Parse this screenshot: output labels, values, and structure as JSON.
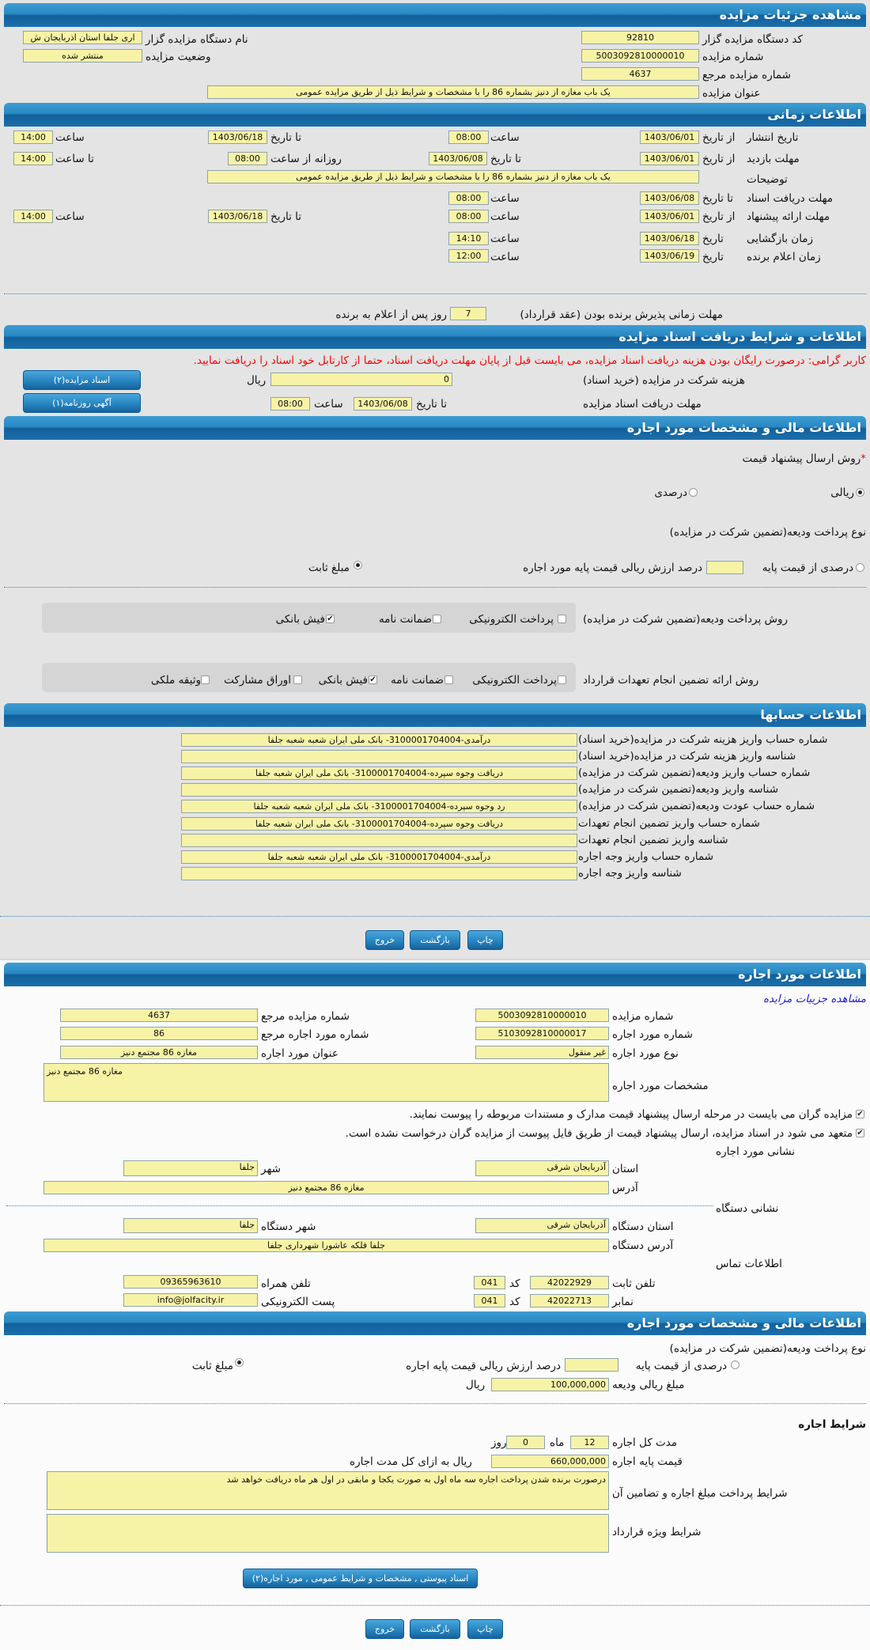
{
  "s1": {
    "title": "مشاهده جزئیات مزایده",
    "code_label": "کد دستگاه مزایده گزار",
    "code": "92810",
    "number_label": "شماره مزایده",
    "number": "5003092810000010",
    "ref_label": "شماره مزایده مرجع",
    "ref": "4637",
    "subject_label": "عنوان مزایده",
    "subject": "یک باب مغازه از دنیز بشماره 86 را با مشخصات  و شرایط ذیل  از طریق مزایده عمومی",
    "org_label": "نام دستگاه مزایده گزار",
    "org": "اری جلفا استان اذربایجان ش",
    "status_label": "وضعیت مزایده",
    "status": "منتشر شده"
  },
  "s2": {
    "title": "اطلاعات زمانی",
    "from_date": "از تاریخ",
    "to_date": "تا تاریخ",
    "date": "تاریخ",
    "time": "ساعت",
    "daily_from": "روزانه از ساعت",
    "to_time": "تا ساعت",
    "publish_label": "تاریخ انتشار",
    "publish_from": "1403/06/01",
    "publish_from_time": "08:00",
    "publish_to": "1403/06/18",
    "publish_to_time": "14:00",
    "visit_label": "مهلت بازدید",
    "visit_from": "1403/06/01",
    "visit_to": "1403/06/08",
    "visit_daily_from": "08:00",
    "visit_daily_to": "14:00",
    "desc_label": "توضیحات",
    "desc": "یک باب مغازه از دنیز بشماره 86 را با مشخصات  و شرایط ذیل  از طریق مزایده عمومی",
    "docs_label": "مهلت دریافت اسناد",
    "docs_to": "1403/06/08",
    "docs_time": "08:00",
    "offer_label": "مهلت ارائه پیشنهاد",
    "offer_from": "1403/06/01",
    "offer_from_time": "08:00",
    "offer_to": "1403/06/18",
    "offer_to_time": "14:00",
    "open_label": "زمان بازگشایی",
    "open_date": "1403/06/18",
    "open_time": "14:10",
    "winner_label": "زمان اعلام برنده",
    "winner_date": "1403/06/19",
    "winner_time": "12:00",
    "accept_label": "مهلت زمانی پذیرش برنده بودن (عقد قرارداد)",
    "accept_days": "7",
    "accept_suffix": "روز پس از اعلام به برنده"
  },
  "s3": {
    "title": "اطلاعات و شرایط دریافت اسناد مزایده",
    "warning": "کاربر گرامی: درصورت رایگان بودن هزینه دریافت اسناد مزایده، می بایست قبل از پایان مهلت دریافت اسناد، حتما از کارتابل خود اسناد را دریافت نمایید.",
    "fee_label": "هزینه شرکت در مزایده (خرید اسناد)",
    "fee": "0",
    "rial": "ریال",
    "deadline_label": "مهلت دریافت اسناد مزایده",
    "to_date": "تا تاریخ",
    "deadline_date": "1403/06/08",
    "time": "ساعت",
    "deadline_time": "08:00",
    "docs_button": "اسناد مزایده(۲)",
    "ad_button": "آگهی روزنامه(۱)"
  },
  "s4": {
    "title": "اطلاعات مالی و مشخصات مورد اجاره",
    "required_mark": "*",
    "method_label": "روش ارسال پیشنهاد قیمت",
    "rial_option": "ریالی",
    "percent_option": "درصدی",
    "deposit_type_label": "نوع پرداخت ودیعه(تضمین شرکت در مزایده)",
    "pct_option": "درصدی از قیمت پایه",
    "pct_value": "",
    "pct_suffix": "درصد ارزش ریالی قیمت پایه مورد اجاره",
    "fixed_option": "مبلغ ثابت",
    "pay_method_label": "روش پرداخت ودیعه(تضمین شرکت در مزایده)",
    "pay_methods": [
      {
        "label": "پرداخت الکترونیکی",
        "checked": false
      },
      {
        "label": "ضمانت نامه",
        "checked": false
      },
      {
        "label": "فیش بانکی",
        "checked": true
      }
    ],
    "guarantee_label": "روش ارائه تضمین انجام تعهدات قرارداد",
    "guarantees": [
      {
        "label": "پرداخت الکترونیکی",
        "checked": false
      },
      {
        "label": "ضمانت نامه",
        "checked": false
      },
      {
        "label": "فیش بانکی",
        "checked": true
      },
      {
        "label": "اوراق مشارکت",
        "checked": false
      },
      {
        "label": "وثیقه ملکی",
        "checked": false
      }
    ]
  },
  "s5": {
    "title": "اطلاعات حسابها",
    "rows": [
      {
        "label": "شماره حساب واریز هزینه شرکت در مزایده(خرید اسناد)",
        "value": "درآمدی-3100001704004- بانک ملی ایران شعبه شعبه جلفا"
      },
      {
        "label": "شناسه واریز هزینه شرکت در مزایده(خرید اسناد)",
        "value": ""
      },
      {
        "label": "شماره حساب واریز ودیعه(تضمین شرکت در مزایده)",
        "value": "دریافت وجوه سپرده-3100001704004- بانک ملی ایران شعبه جلفا"
      },
      {
        "label": "شناسه واریز ودیعه(تضمین شرکت در مزایده)",
        "value": ""
      },
      {
        "label": "شماره حساب عودت ودیعه(تضمین شرکت در مزایده)",
        "value": "رد وجوه سپرده-3100001704004- بانک ملی ایران شعبه شعبه جلفا"
      },
      {
        "label": "شماره حساب واریز تضمین انجام تعهدات",
        "value": "دریافت وجوه سپرده-3100001704004- بانک ملی ایران شعبه جلفا"
      },
      {
        "label": "شناسه واریز تضمین انجام تعهدات",
        "value": ""
      },
      {
        "label": "شماره حساب واریز وجه اجاره",
        "value": "درآمدی-3100001704004- بانک ملی ایران شعبه شعبه جلفا"
      },
      {
        "label": "شناسه واریز وجه اجاره",
        "value": ""
      }
    ]
  },
  "actions": {
    "print": "چاپ",
    "back": "بازگشت",
    "exit": "خروج"
  },
  "s6": {
    "title": "اطلاعات مورد اجاره",
    "details_link": "مشاهده جزییات مزایده",
    "number_label": "شماره مزایده",
    "number": "5003092810000010",
    "ref_label": "شماره مزایده مرجع",
    "ref": "4637",
    "item_no_label": "شماره مورد اجاره",
    "item_no": "5103092810000017",
    "item_ref_label": "شماره مورد اجاره مرجع",
    "item_ref": "86",
    "type_label": "نوع مورد اجاره",
    "type": "غیر منقول",
    "item_title_label": "عنوان مورد اجاره",
    "item_title": "مغازه 86 مجتمع دنیز",
    "spec_label": "مشخصات مورد اجاره",
    "spec": "مغازه 86 مجتمع دنیز",
    "check1": "مزایده گران می بایست در مرحله ارسال پیشنهاد قیمت مدارک و مستندات مربوطه را پیوست نمایند.",
    "check2": "متعهد می شود در اسناد مزایده، ارسال پیشنهاد قیمت از طریق فایل پیوست از مزایده گران درخواست نشده است.",
    "address_heading": "نشانی مورد اجاره",
    "province_label": "استان",
    "province": "آذربایجان شرقی",
    "city_label": "شهر",
    "city": "جلفا",
    "address_label": "آدرس",
    "address": "مغازه 86 مجتمع دنیز",
    "org_heading": "نشانی دستگاه",
    "org_province_label": "استان دستگاه",
    "org_province": "آذربایجان شرقی",
    "org_city_label": "شهر دستگاه",
    "org_city": "جلفا",
    "org_address_label": "آدرس دستگاه",
    "org_address": "جلفا فلکه عاشورا شهرداری جلفا",
    "contact_heading": "اطلاعات تماس",
    "phone_label": "تلفن ثابت",
    "phone": "42022929",
    "code_label": "کد",
    "phone_code": "041",
    "mobile_label": "تلفن همراه",
    "mobile": "09365963610",
    "fax_label": "نمابر",
    "fax": "42022713",
    "fax_code": "041",
    "email_label": "پست الکترونیکی",
    "email": "info@jolfacity.ir"
  },
  "s7": {
    "title": "اطلاعات مالی و مشخصات مورد اجاره",
    "deposit_type_label": "نوع پرداخت ودیعه(تضمین شرکت در مزایده)",
    "pct_option": "درصدی از قیمت پایه",
    "pct_value": "",
    "pct_suffix": "درصد ارزش ریالی قیمت پایه اجاره",
    "fixed_option": "مبلغ ثابت",
    "deposit_label": "مبلغ ریالی ودیعه",
    "deposit": "100,000,000",
    "rial": "ریال",
    "terms_heading": "شرایط اجاره",
    "duration_label": "مدت کل اجاره",
    "months": "12",
    "month_unit": "ماه",
    "days": "0",
    "day_unit": "روز",
    "base_label": "قیمت پایه اجاره",
    "base": "660,000,000",
    "base_suffix": "ریال به ازای کل مدت اجاره",
    "payment_terms_label": "شرایط پرداخت مبلغ اجاره و تضامین آن",
    "payment_terms": "درصورت برنده شدن پرداخت اجاره سه ماه اول به صورت یکجا و مابقی در اول هر ماه دریافت خواهد شد",
    "special_label": "شرایط ویژه قرارداد",
    "special": "",
    "attach_button": "اسناد پیوستی , مشخصات و شرایط عمومی , مورد اجاره(۲)"
  }
}
